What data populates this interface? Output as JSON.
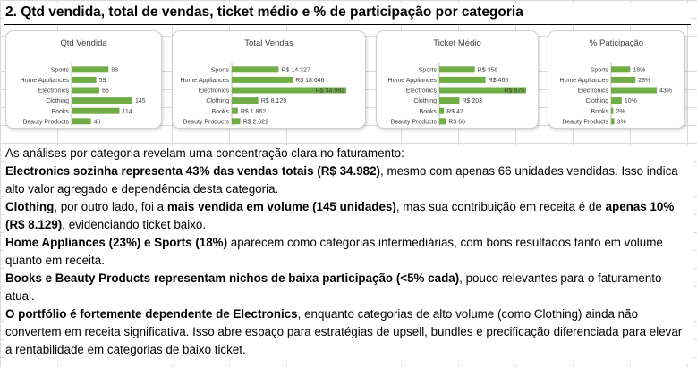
{
  "title": "2. Qtd vendida, total de vendas, ticket médio e % de participação por categoria",
  "colors": {
    "bar": "#70ad47",
    "border": "#d0d0d0"
  },
  "chart_data": [
    {
      "type": "bar",
      "orientation": "horizontal",
      "title": "Qtd Vendida",
      "categories": [
        "Sports",
        "Home Appliances",
        "Electronics",
        "Clothing",
        "Books",
        "Beauty Products"
      ],
      "values": [
        88,
        59,
        66,
        145,
        114,
        46
      ],
      "labels": [
        "88",
        "59",
        "66",
        "145",
        "114",
        "46"
      ],
      "xlim": [
        0,
        145
      ]
    },
    {
      "type": "bar",
      "orientation": "horizontal",
      "title": "Total Vendas",
      "categories": [
        "Sports",
        "Home Appliances",
        "Electronics",
        "Clothing",
        "Books",
        "Beauty Products"
      ],
      "values": [
        14327,
        18646,
        34982,
        8129,
        1862,
        2622
      ],
      "labels": [
        "R$ 14.327",
        "R$ 18.646",
        "R$ 34.982",
        "R$ 8.129",
        "R$ 1.862",
        "R$ 2.622"
      ],
      "xlim": [
        0,
        34982
      ]
    },
    {
      "type": "bar",
      "orientation": "horizontal",
      "title": "Ticket Médio",
      "categories": [
        "Sports",
        "Home Appliances",
        "Electronics",
        "Clothing",
        "Books",
        "Beauty Products"
      ],
      "values": [
        358,
        466,
        875,
        203,
        47,
        66
      ],
      "labels": [
        "R$ 358",
        "R$ 466",
        "R$ 875",
        "R$ 203",
        "R$ 47",
        "R$ 66"
      ],
      "xlim": [
        0,
        875
      ]
    },
    {
      "type": "bar",
      "orientation": "horizontal",
      "title": "% Paticipação",
      "categories": [
        "Sports",
        "Home Appliances",
        "Electronics",
        "Clothing",
        "Books",
        "Beauty Products"
      ],
      "values": [
        18,
        23,
        43,
        10,
        2,
        3
      ],
      "labels": [
        "18%",
        "23%",
        "43%",
        "10%",
        "2%",
        "3%"
      ],
      "xlim": [
        0,
        43
      ]
    }
  ],
  "analysis": {
    "intro": "As análises por categoria revelam uma concentração clara no faturamento:",
    "p1_bold": "Electronics sozinha representa 43% das vendas totais (R$ 34.982)",
    "p1_rest": ", mesmo com apenas 66 unidades vendidas. Isso indica alto valor agregado e dependência desta categoria.",
    "p2_bold1": "Clothing",
    "p2_mid1": ", por outro lado, foi a ",
    "p2_bold2": "mais vendida em volume (145 unidades)",
    "p2_mid2": ", mas sua contribuição em receita é de ",
    "p2_bold3": "apenas 10% (R$ 8.129)",
    "p2_rest": ", evidenciando ticket baixo.",
    "p3_bold": "Home Appliances (23%) e Sports (18%)",
    "p3_rest": " aparecem como categorias intermediárias, com bons resultados tanto em volume quanto em receita.",
    "p4_bold": "Books e Beauty Products representam nichos de baixa participação (<5% cada)",
    "p4_rest": ", pouco relevantes para o faturamento atual.",
    "p5_bold": "O portfólio é fortemente dependente de Electronics",
    "p5_rest": ", enquanto categorias de alto volume (como Clothing) ainda não convertem em receita significativa. Isso abre espaço para estratégias de upsell, bundles e precificação diferenciada para elevar a rentabilidade em categorias de baixo ticket."
  }
}
